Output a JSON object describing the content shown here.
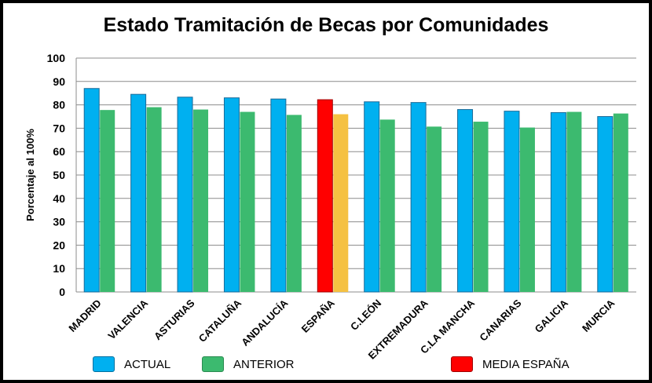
{
  "chart_data": {
    "type": "bar",
    "title": "Estado Tramitación de Becas por Comunidades",
    "ylabel": "Porcentaje al 100%",
    "xlabel": "",
    "ylim": [
      0,
      100
    ],
    "yticks": [
      "0",
      "10",
      "20",
      "30",
      "40",
      "50",
      "60",
      "70",
      "80",
      "90",
      "100"
    ],
    "grid": true,
    "legend_position": "bottom",
    "categories": [
      "MADRID",
      "VALENCIA",
      "ASTURIAS",
      "CATALUÑA",
      "ANDALUCÍA",
      "ESPAÑA",
      "C.LEÓN",
      "EXTREMADURA",
      "C.LA MANCHA",
      "CANARIAS",
      "GALICIA",
      "MURCIA"
    ],
    "series": [
      {
        "name": "ACTUAL",
        "color": "#00b0f0",
        "values": [
          87,
          84.5,
          83.3,
          83,
          82.5,
          82.2,
          81.3,
          81,
          78,
          77.3,
          76.7,
          75
        ]
      },
      {
        "name": "ANTERIOR",
        "color": "#3cba6f",
        "values": [
          77.8,
          79,
          78,
          77,
          75.7,
          76,
          73.7,
          70.7,
          72.8,
          70.3,
          77,
          76.3
        ]
      }
    ],
    "highlight": {
      "category": "ESPAÑA",
      "actual_color": "#ff0000",
      "anterior_color": "#f5c142",
      "legend_label": "MEDIA ESPAÑA"
    }
  },
  "legend": [
    {
      "label": "ACTUAL",
      "color": "#00b0f0"
    },
    {
      "label": "ANTERIOR",
      "color": "#3cba6f"
    },
    {
      "label": "MEDIA ESPAÑA",
      "color": "#ff0000"
    }
  ]
}
